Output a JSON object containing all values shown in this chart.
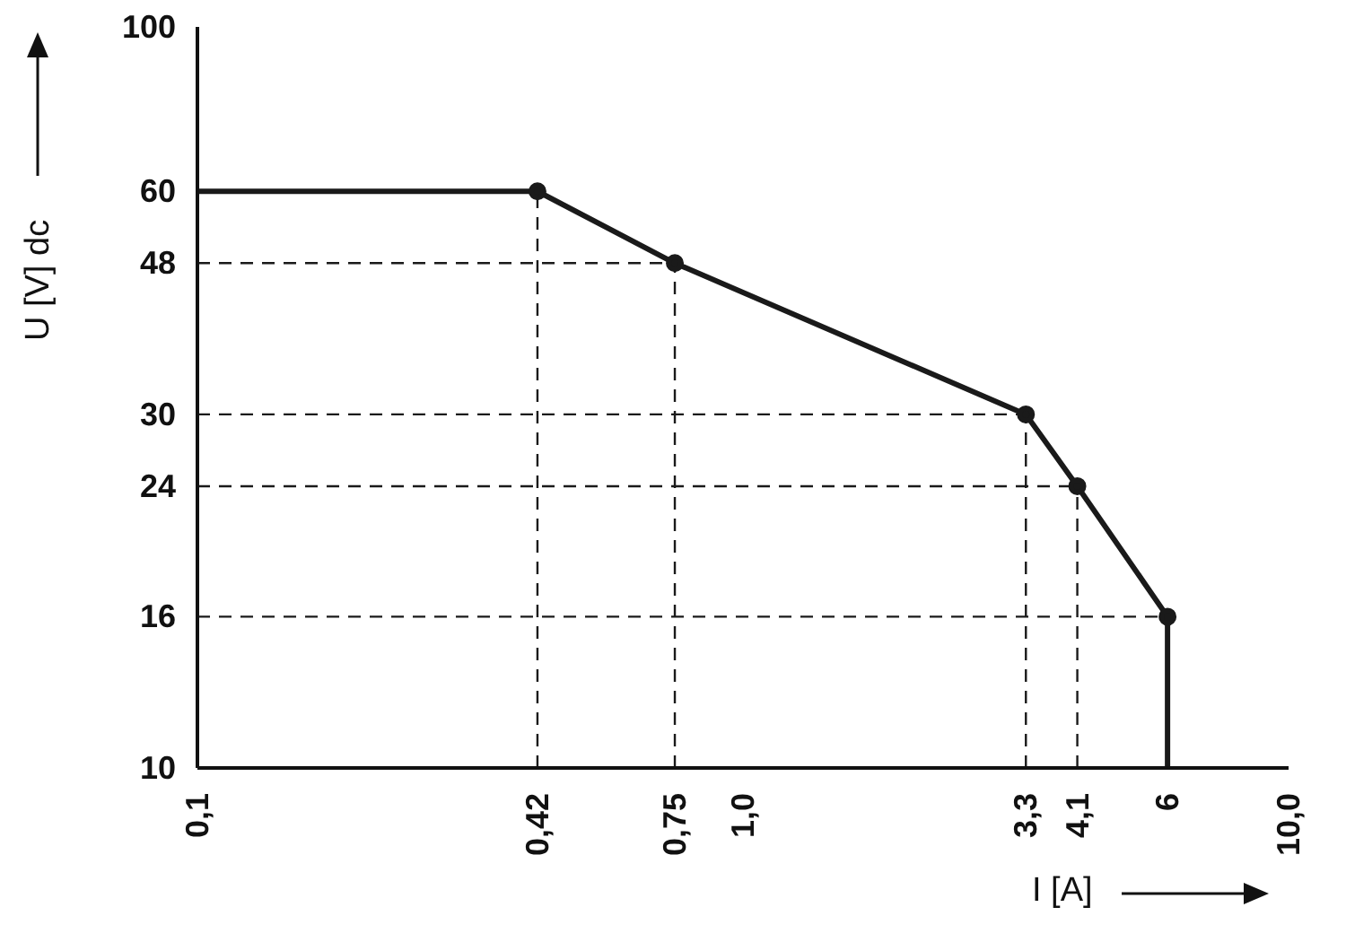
{
  "chart_data": {
    "type": "line",
    "xlabel": "I [A]",
    "ylabel": "U [V] dc",
    "log": "xy",
    "xlim": [
      0.1,
      10
    ],
    "ylim": [
      10,
      100
    ],
    "xticks": [
      {
        "value": 0.1,
        "label": "0,1"
      },
      {
        "value": 0.42,
        "label": "0,42"
      },
      {
        "value": 0.75,
        "label": "0,75"
      },
      {
        "value": 1,
        "label": "1,0"
      },
      {
        "value": 3.3,
        "label": "3,3"
      },
      {
        "value": 4.1,
        "label": "4,1"
      },
      6,
      {
        "value": 10,
        "label": "10,0"
      }
    ],
    "yticks": [
      10,
      16,
      24,
      30,
      48,
      60,
      100
    ],
    "series": [
      {
        "color": "#1a1a1a",
        "x": [
          0.1,
          0.42
        ],
        "values": [
          60,
          60
        ],
        "line_style": "solid"
      },
      {
        "color": "#1a1a1a",
        "x": [
          0.42,
          0.75,
          3.3,
          4.1,
          6
        ],
        "values": [
          60,
          48,
          30,
          24,
          16
        ],
        "marker": "circle",
        "line_style": "solid"
      },
      {
        "color": "#1a1a1a",
        "x": [
          6,
          6
        ],
        "values": [
          16,
          10
        ],
        "line_style": "solid"
      },
      {
        "color": "#1a1a1a",
        "x": [
          0.42,
          0.42
        ],
        "values": [
          10,
          60
        ],
        "marker": "none",
        "line_style": "dashed"
      },
      {
        "color": "#1a1a1a",
        "x": [
          0.75,
          0.75
        ],
        "values": [
          10,
          48
        ],
        "marker": "none",
        "line_style": "dashed"
      },
      {
        "color": "#1a1a1a",
        "x": [
          3.3,
          3.3
        ],
        "values": [
          10,
          30
        ],
        "marker": "none",
        "line_style": "dashed"
      },
      {
        "color": "#1a1a1a",
        "x": [
          4.1,
          4.1
        ],
        "values": [
          10,
          24
        ],
        "marker": "none",
        "line_style": "dashed"
      },
      {
        "color": "#1a1a1a",
        "x": [
          0.1,
          0.75
        ],
        "values": [
          48,
          48
        ],
        "marker": "none",
        "line_style": "dashed"
      },
      {
        "color": "#1a1a1a",
        "x": [
          0.1,
          3.3
        ],
        "values": [
          30,
          30
        ],
        "marker": "none",
        "line_style": "dashed"
      },
      {
        "color": "#1a1a1a",
        "x": [
          0.1,
          4.1
        ],
        "values": [
          24,
          24
        ],
        "marker": "none",
        "line_style": "dashed"
      },
      {
        "color": "#1a1a1a",
        "x": [
          0.1,
          6
        ],
        "values": [
          16,
          16
        ],
        "marker": "none",
        "line_style": "dashed"
      }
    ]
  }
}
